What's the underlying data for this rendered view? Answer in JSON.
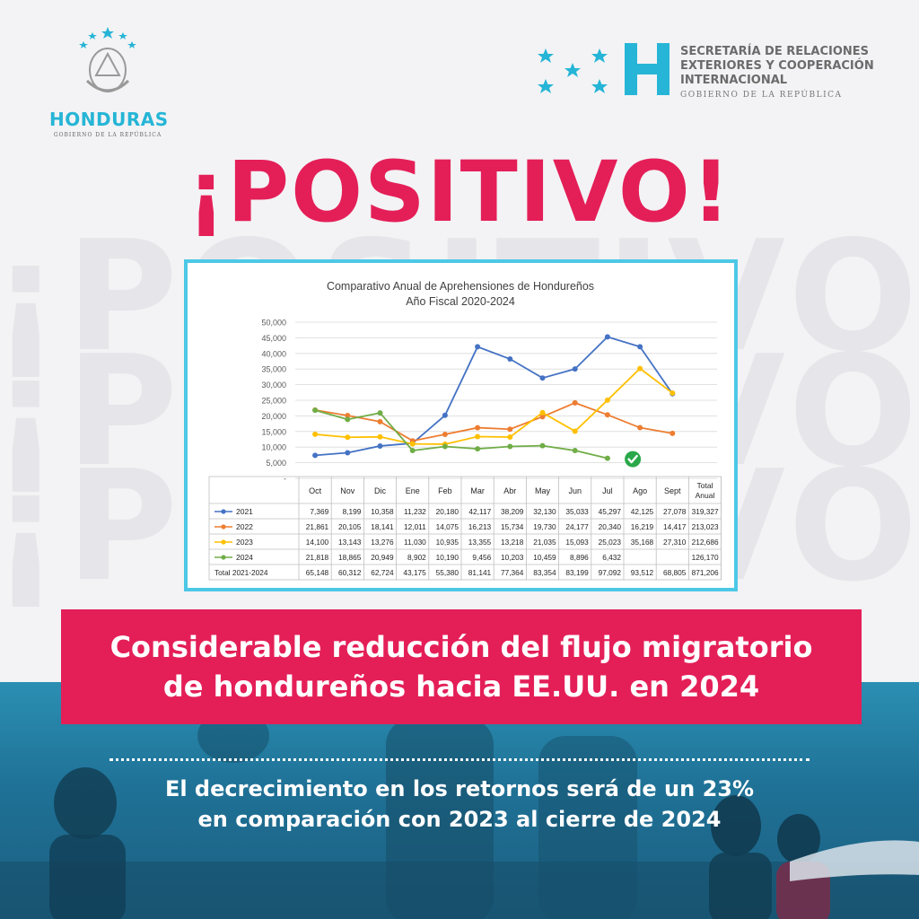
{
  "logos": {
    "left_country": "HONDURAS",
    "left_gov": "GOBIERNO DE LA REPÚBLICA",
    "right_line1": "SECRETARÍA DE RELACIONES",
    "right_line2": "EXTERIORES Y COOPERACIÓN",
    "right_line3": "INTERNACIONAL",
    "right_sub": "GOBIERNO DE LA REPÚBLICA"
  },
  "headline": "¡POSITIVO!",
  "watermark": "¡POSITIVO!",
  "banner": {
    "line1": "Considerable reducción del flujo migratorio",
    "line2": "de hondureños hacia EE.UU. en 2024"
  },
  "subtext": {
    "line1": "El decrecimiento en los retornos será de un 23%",
    "line2": "en comparación con 2023 al cierre de 2024"
  },
  "colors": {
    "pink": "#e41f58",
    "cyan": "#26b5d6",
    "blue_bottom": "#1f7196",
    "s2021": "#4472c4",
    "s2022": "#ed7d31",
    "s2023": "#ffc000",
    "s2024": "#70ad47"
  },
  "chart_data": {
    "type": "line",
    "title": "Comparativo Anual de Aprehensiones de Hondureños",
    "subtitle": "Año Fiscal 2020-2024",
    "categories": [
      "Oct",
      "Nov",
      "Dic",
      "Ene",
      "Feb",
      "Mar",
      "Abr",
      "May",
      "Jun",
      "Jul",
      "Ago",
      "Sept"
    ],
    "total_header": "Total Anual",
    "ylim": [
      0,
      50000
    ],
    "yticks": [
      "50,000",
      "45,000",
      "40,000",
      "35,000",
      "30,000",
      "25,000",
      "20,000",
      "15,000",
      "10,000",
      "5,000",
      "-"
    ],
    "series": [
      {
        "name": "2021",
        "color": "#4472c4",
        "values": [
          7369,
          8199,
          10358,
          11232,
          20180,
          42117,
          38209,
          32130,
          35033,
          45297,
          42125,
          27078
        ],
        "cells": [
          "7,369",
          "8,199",
          "10,358",
          "11,232",
          "20,180",
          "42,117",
          "38,209",
          "32,130",
          "35,033",
          "45,297",
          "42,125",
          "27,078",
          "319,327"
        ]
      },
      {
        "name": "2022",
        "color": "#ed7d31",
        "values": [
          21861,
          20105,
          18141,
          12011,
          14075,
          16213,
          15734,
          19730,
          24177,
          20340,
          16219,
          14417
        ],
        "cells": [
          "21,861",
          "20,105",
          "18,141",
          "12,011",
          "14,075",
          "16,213",
          "15,734",
          "19,730",
          "24,177",
          "20,340",
          "16,219",
          "14,417",
          "213,023"
        ]
      },
      {
        "name": "2023",
        "color": "#ffc000",
        "values": [
          14100,
          13143,
          13276,
          11030,
          10935,
          13355,
          13218,
          21035,
          15093,
          25023,
          35168,
          27310
        ],
        "cells": [
          "14,100",
          "13,143",
          "13,276",
          "11,030",
          "10,935",
          "13,355",
          "13,218",
          "21,035",
          "15,093",
          "25,023",
          "35,168",
          "27,310",
          "212,686"
        ]
      },
      {
        "name": "2024",
        "color": "#70ad47",
        "values": [
          21818,
          18865,
          20949,
          8902,
          10190,
          9456,
          10203,
          10459,
          8896,
          6432,
          null,
          null
        ],
        "cells": [
          "21,818",
          "18,865",
          "20,949",
          "8,902",
          "10,190",
          "9,456",
          "10,203",
          "10,459",
          "8,896",
          "6,432",
          "",
          "",
          "126,170"
        ]
      }
    ],
    "total_row": {
      "label": "Total 2021-2024",
      "cells": [
        "65,148",
        "60,312",
        "62,724",
        "43,175",
        "55,380",
        "81,141",
        "77,364",
        "83,354",
        "83,199",
        "97,092",
        "93,512",
        "68,805",
        "871,206"
      ]
    },
    "checkmark_at": "Jul 2024"
  }
}
